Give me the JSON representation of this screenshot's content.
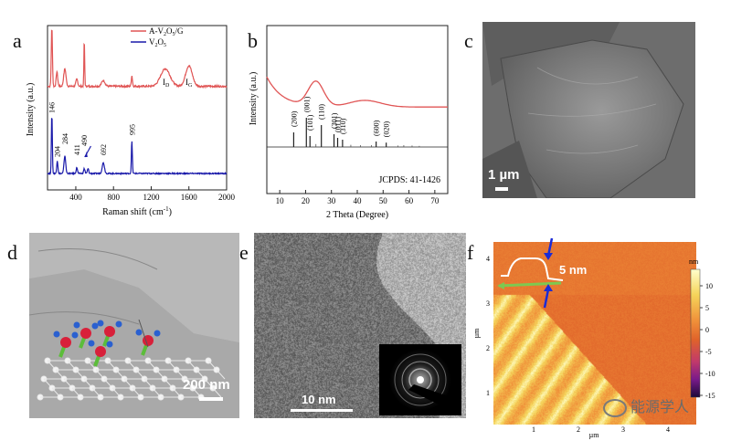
{
  "panel_labels": {
    "a": "a",
    "b": "b",
    "c": "c",
    "d": "d",
    "e": "e",
    "f": "f"
  },
  "chart_data": [
    {
      "id": "a",
      "type": "line",
      "xlabel": "Raman shift (cm",
      "xlabel_sup": "-1",
      "xlabel_tail": ")",
      "ylabel": "Intensity (a.u.)",
      "xlim": [
        100,
        2000
      ],
      "xticks": [
        "400",
        "800",
        "1200",
        "1600",
        "2000"
      ],
      "legend_position": "top-right",
      "series": [
        {
          "name": "A-V2O5/G",
          "name_parts": [
            "A-V",
            "2",
            "O",
            "5",
            "/G"
          ],
          "color": "#e05555",
          "baseline": 0.18,
          "noise": 0.015,
          "peaks": [
            [
              146,
              1.0,
              6
            ],
            [
              200,
              0.25,
              8
            ],
            [
              284,
              0.3,
              12
            ],
            [
              411,
              0.12,
              10
            ],
            [
              490,
              0.8,
              4
            ],
            [
              692,
              0.1,
              18
            ],
            [
              995,
              0.18,
              6
            ],
            [
              1350,
              0.3,
              50
            ],
            [
              1600,
              0.35,
              35
            ]
          ]
        },
        {
          "name": "V2O5",
          "name_parts": [
            "V",
            "2",
            "O",
            "5"
          ],
          "color": "#1a1aaa",
          "baseline": 0.0,
          "noise": 0.01,
          "peaks": [
            [
              146,
              1.0,
              5
            ],
            [
              204,
              0.22,
              6
            ],
            [
              284,
              0.3,
              9
            ],
            [
              411,
              0.1,
              7
            ],
            [
              490,
              0.08,
              7
            ],
            [
              530,
              0.08,
              7
            ],
            [
              692,
              0.18,
              12
            ],
            [
              995,
              0.55,
              5
            ]
          ]
        }
      ],
      "peak_labels": [
        "146",
        "204",
        "284",
        "411",
        "490",
        "692",
        "995"
      ],
      "band_labels": [
        {
          "text": "I",
          "sub": "D"
        },
        {
          "text": "I",
          "sub": "G"
        }
      ]
    },
    {
      "id": "b",
      "type": "line",
      "xlabel": "2 Theta (Degree)",
      "ylabel": "Intensity (a.u.)",
      "xlim": [
        5,
        75
      ],
      "xticks": [
        "10",
        "20",
        "30",
        "40",
        "50",
        "60",
        "70"
      ],
      "curve": {
        "color": "#e05555"
      },
      "reference": "JCPDS: 41-1426",
      "ref_peaks": [
        [
          15.4,
          0.4,
          "(200)"
        ],
        [
          20.3,
          0.8,
          "(001)"
        ],
        [
          21.7,
          0.3,
          "(101)"
        ],
        [
          26.1,
          0.6,
          "(110)"
        ],
        [
          31.0,
          0.35,
          "(301)"
        ],
        [
          32.4,
          0.25,
          "(011)"
        ],
        [
          34.3,
          0.2,
          "(310)"
        ],
        [
          47.3,
          0.15,
          "(600)"
        ],
        [
          51.2,
          0.12,
          "(020)"
        ]
      ]
    },
    {
      "id": "f",
      "type": "heatmap",
      "xlabel": "µm",
      "ylabel": "µm",
      "xticks": [
        "1",
        "2",
        "3",
        "4"
      ],
      "yticks": [
        "1",
        "2",
        "3",
        "4"
      ],
      "colorbar_unit": "nm",
      "colorbar_ticks": [
        "10",
        "5",
        "0",
        "-5",
        "-10",
        "-15"
      ],
      "colormap": [
        "#ffffcc",
        "#f5d45a",
        "#f0913a",
        "#e0632a",
        "#c23a6a",
        "#7a1a8a",
        "#1c0a3a"
      ]
    }
  ],
  "images": {
    "c": {
      "scale": "1 µm"
    },
    "d": {
      "scale": "200 nm"
    },
    "e": {
      "scale": "10 nm"
    }
  },
  "afm": {
    "step": "5 nm"
  },
  "watermark": "能源学人"
}
